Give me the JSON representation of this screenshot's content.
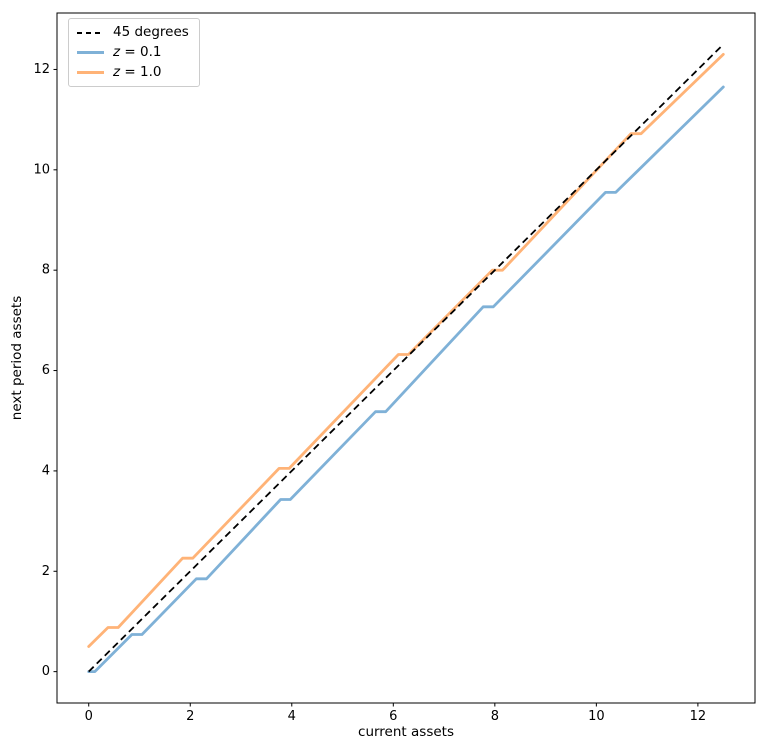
{
  "figure": {
    "background": "#ffffff",
    "axes_color": "#000000"
  },
  "chart_data": {
    "type": "line",
    "title": "",
    "xlabel": "current assets",
    "ylabel": "next period assets",
    "xlim": [
      -0.625,
      13.125
    ],
    "ylim": [
      -0.625,
      13.125
    ],
    "xticks": [
      0,
      2,
      4,
      6,
      8,
      10,
      12
    ],
    "yticks": [
      0,
      2,
      4,
      6,
      8,
      10,
      12
    ],
    "grid": false,
    "legend_position": "upper left",
    "series": [
      {
        "name": "45 degrees",
        "color": "#000000",
        "line_style": "dashed",
        "line_width": 1.8,
        "zorder": 3,
        "points": [
          [
            0,
            0
          ],
          [
            12.5,
            12.5
          ]
        ]
      },
      {
        "name": "z = 0.1",
        "color": "#7fb1d7",
        "line_style": "solid",
        "line_width": 2.8,
        "zorder": 1,
        "points": [
          [
            0,
            0
          ],
          [
            0.12,
            0
          ],
          [
            0.85,
            0.74
          ],
          [
            1.05,
            0.74
          ],
          [
            2.12,
            1.85
          ],
          [
            2.32,
            1.85
          ],
          [
            3.78,
            3.43
          ],
          [
            3.97,
            3.43
          ],
          [
            5.65,
            5.18
          ],
          [
            5.85,
            5.18
          ],
          [
            7.77,
            7.27
          ],
          [
            7.97,
            7.27
          ],
          [
            10.18,
            9.55
          ],
          [
            10.38,
            9.55
          ],
          [
            12.5,
            11.65
          ]
        ]
      },
      {
        "name": "z = 1.0",
        "color": "#ffb377",
        "line_style": "solid",
        "line_width": 2.8,
        "zorder": 2,
        "points": [
          [
            0,
            0.5
          ],
          [
            0.38,
            0.88
          ],
          [
            0.58,
            0.88
          ],
          [
            1.85,
            2.26
          ],
          [
            2.05,
            2.26
          ],
          [
            3.75,
            4.05
          ],
          [
            3.95,
            4.05
          ],
          [
            6.1,
            6.32
          ],
          [
            6.3,
            6.32
          ],
          [
            7.95,
            8.0
          ],
          [
            8.15,
            8.0
          ],
          [
            10.68,
            10.72
          ],
          [
            10.88,
            10.72
          ],
          [
            12.5,
            12.3
          ]
        ]
      }
    ]
  },
  "legend": {
    "entries": [
      {
        "var": "",
        "rest": "45 degrees"
      },
      {
        "var": "z",
        "rest": " = 0.1"
      },
      {
        "var": "z",
        "rest": " = 1.0"
      }
    ]
  }
}
